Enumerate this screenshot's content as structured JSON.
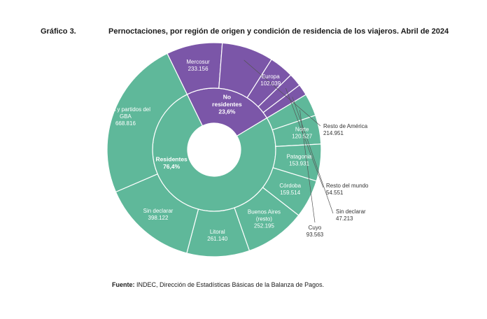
{
  "header": {
    "figure_number": "Gráfico 3.",
    "title": "Pernoctaciones, por región de origen y condición de residencia de los viajeros. Abril de 2024"
  },
  "source": {
    "label": "Fuente:",
    "text": " INDEC, Dirección de Estadísticas Básicas de la Balanza de Pagos."
  },
  "colors": {
    "residents": "#5fb89a",
    "non_residents": "#7b56a8",
    "stroke": "#ffffff"
  },
  "chart_data": {
    "type": "sunburst",
    "title": "Pernoctaciones, por región de origen y condición de residencia de los viajeros. Abril de 2024",
    "inner": [
      {
        "name": "No residentes",
        "label_lines": [
          "No",
          "residentes"
        ],
        "percent": "23,6%",
        "share": 23.6,
        "group": "non_residents"
      },
      {
        "name": "Residentes",
        "label_lines": [
          "Residentes"
        ],
        "percent": "76,4%",
        "share": 76.4,
        "group": "residents"
      }
    ],
    "outer": [
      {
        "name": "Mercosur",
        "label": [
          "Mercosur"
        ],
        "value_label": "233.156",
        "value": 233156,
        "group": "non_residents",
        "placement": "inside"
      },
      {
        "name": "Resto de América",
        "label": [
          "Resto de América"
        ],
        "value_label": "214.951",
        "value": 214951,
        "group": "non_residents",
        "placement": "outside"
      },
      {
        "name": "Europa",
        "label": [
          "Europa"
        ],
        "value_label": "102.039",
        "value": 102039,
        "group": "non_residents",
        "placement": "inside"
      },
      {
        "name": "Resto del mundo",
        "label": [
          "Resto del mundo"
        ],
        "value_label": "54.551",
        "value": 54551,
        "group": "non_residents",
        "placement": "outside"
      },
      {
        "name": "Sin declarar",
        "label": [
          "Sin declarar"
        ],
        "value_label": "47.213",
        "value": 47213,
        "group": "non_residents",
        "placement": "outside"
      },
      {
        "name": "Cuyo",
        "label": [
          "Cuyo"
        ],
        "value_label": "93.563",
        "value": 93563,
        "group": "residents",
        "placement": "outside"
      },
      {
        "name": "Norte",
        "label": [
          "Norte"
        ],
        "value_label": "120.527",
        "value": 120527,
        "group": "residents",
        "placement": "inside"
      },
      {
        "name": "Patagonia",
        "label": [
          "Patagonia"
        ],
        "value_label": "153.931",
        "value": 153931,
        "group": "residents",
        "placement": "inside"
      },
      {
        "name": "Córdoba",
        "label": [
          "Córdoba"
        ],
        "value_label": "159.514",
        "value": 159514,
        "group": "residents",
        "placement": "inside"
      },
      {
        "name": "Buenos Aires (resto)",
        "label": [
          "Buenos Aires",
          "(resto)"
        ],
        "value_label": "252.195",
        "value": 252195,
        "group": "residents",
        "placement": "inside"
      },
      {
        "name": "Litoral",
        "label": [
          "Litoral"
        ],
        "value_label": "261.140",
        "value": 261140,
        "group": "residents",
        "placement": "inside"
      },
      {
        "name": "Sin declarar",
        "label": [
          "Sin declarar"
        ],
        "value_label": "398.122",
        "value": 398122,
        "group": "residents",
        "placement": "inside"
      },
      {
        "name": "CABA y partidos del GBA",
        "label": [
          "CABA y partidos del",
          "GBA"
        ],
        "value_label": "668.816",
        "value": 668816,
        "group": "residents",
        "placement": "inside"
      }
    ]
  }
}
